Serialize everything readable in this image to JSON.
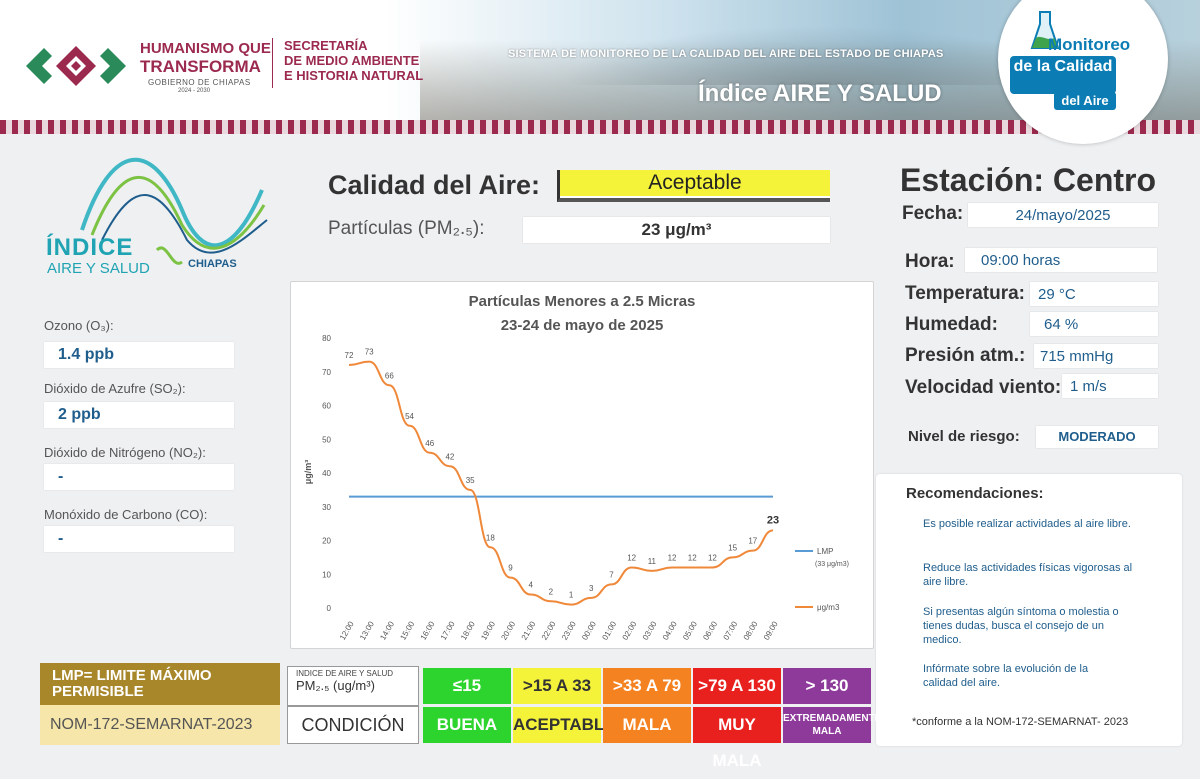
{
  "header": {
    "gov_line1": "HUMANISMO QUE",
    "gov_line2": "TRANSFORMA",
    "gov_line3": "GOBIERNO DE CHIAPAS",
    "gov_line4": "2024 - 2030",
    "secretaria": [
      "SECRETARÍA",
      "DE MEDIO AMBIENTE",
      "E HISTORIA NATURAL"
    ],
    "system_title": "SISTEMA DE MONITOREO DE LA CALIDAD DEL AIRE DEL ESTADO DE CHIAPAS",
    "index_title": "Índice AIRE Y SALUD",
    "brand_line1": "Monitoreo",
    "brand_line2a": "de la Calidad",
    "brand_line3": "del Aire",
    "brand_color": "#0c7db4",
    "gov_color": "#9b2a4e"
  },
  "left": {
    "logo_word1": "ÍNDICE",
    "logo_word2": "AIRE Y SALUD",
    "logo_word3": "CHIAPAS",
    "pollutants": [
      {
        "label": "Ozono (O₃):",
        "value": "1.4 ppb"
      },
      {
        "label": "Dióxido de Azufre  (SO₂):",
        "value": "2 ppb"
      },
      {
        "label": "Dióxido de Nitrógeno (NO₂):",
        "value": "-"
      },
      {
        "label": "Monóxido de Carbono (CO):",
        "value": "-"
      }
    ]
  },
  "main": {
    "calidad_label": "Calidad del Aire:",
    "calidad_value": "Aceptable",
    "pm_label": "Partículas (PM₂.₅):",
    "pm_value": "23 μg/m³"
  },
  "chart_data": {
    "type": "line",
    "title": "Partículas Menores a 2.5 Micras",
    "subtitle": "23-24 de mayo de 2025",
    "ylabel": "μg/m³",
    "xlabel": "",
    "ylim": [
      0,
      80
    ],
    "yticks": [
      0,
      10,
      20,
      30,
      40,
      50,
      60,
      70,
      80
    ],
    "categories": [
      "12:00",
      "13:00",
      "14:00",
      "15:00",
      "16:00",
      "17:00",
      "18:00",
      "19:00",
      "20:00",
      "21:00",
      "22:00",
      "23:00",
      "00:00",
      "01:00",
      "02:00",
      "03:00",
      "04:00",
      "05:00",
      "06:00",
      "07:00",
      "08:00",
      "09:00"
    ],
    "series": [
      {
        "name": "μg/m3",
        "values": [
          72,
          73,
          66,
          54,
          46,
          42,
          35,
          18,
          9,
          4,
          2,
          1,
          3,
          7,
          12,
          11,
          12,
          12,
          12,
          15,
          17,
          23
        ],
        "color": "#f0883a"
      },
      {
        "name": "LMP (33 μg/m3)",
        "values": [
          33,
          33,
          33,
          33,
          33,
          33,
          33,
          33,
          33,
          33,
          33,
          33,
          33,
          33,
          33,
          33,
          33,
          33,
          33,
          33,
          33,
          33
        ],
        "color": "#5b9bd5"
      }
    ],
    "legend_lmp_line1": "LMP",
    "legend_lmp_line2": "(33 μg/m3)",
    "legend_series": "μg/m3",
    "legend_position": "right",
    "grid": false
  },
  "station": {
    "title": "Estación: Centro",
    "fecha_label": "Fecha:",
    "fecha": "24/mayo/2025",
    "hora_label": "Hora:",
    "hora": "09:00 horas",
    "temp_label": "Temperatura:",
    "temp": "29 °C",
    "hum_label": "Humedad:",
    "hum": "64 %",
    "pres_label": "Presión atm.:",
    "pres": "715 mmHg",
    "viento_label": "Velocidad viento:",
    "viento": "1 m/s",
    "riesgo_label": "Nivel de riesgo:",
    "riesgo": "MODERADO"
  },
  "recomendaciones": {
    "title": "Recomendaciones:",
    "items": [
      "Es posible realizar actividades al aire libre.",
      "Reduce las actividades físicas vigorosas al aire libre.",
      "Si presentas algún síntoma o molestia o tienes dudas, busca el consejo de un medico.",
      "Infórmate sobre la evolución de la calidad del aire."
    ],
    "footnote": "*conforme a la NOM-172-SEMARNAT- 2023"
  },
  "legend": {
    "lmp_title": "LMP= LIMITE MÁXIMO PERMISIBLE",
    "nom": "NOM-172-SEMARNAT-2023",
    "head1": "INDICE DE AIRE Y SALUD",
    "head2": "PM₂.₅ (ug/m³)",
    "cond_label": "CONDICIÓN",
    "ranges": [
      "≤15",
      ">15 A 33",
      ">33 A 79",
      ">79 A 130",
      "> 130"
    ],
    "conditions": [
      "BUENA",
      "ACEPTABLE",
      "MALA",
      "MUY MALA",
      "EXTREMADAMENTE MALA"
    ],
    "colors": [
      "#2ed42e",
      "#f5f23a",
      "#f58220",
      "#e8201e",
      "#8e3a9b"
    ],
    "text_colors": [
      "#ffffff",
      "#333333",
      "#ffffff",
      "#ffffff",
      "#ffffff"
    ]
  }
}
